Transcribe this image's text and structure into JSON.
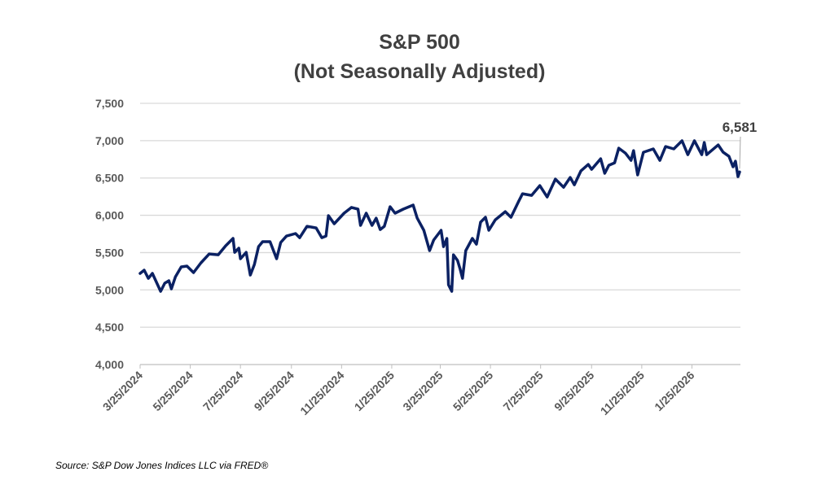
{
  "chart_data": {
    "type": "line",
    "title": "S&P 500",
    "subtitle": "(Not Seasonally Adjusted)",
    "xlabel": "",
    "ylabel": "",
    "ylim": [
      4000,
      7500
    ],
    "yticks": [
      4000,
      4500,
      5000,
      5500,
      6000,
      6500,
      7000,
      7500
    ],
    "ytick_labels": [
      "4,000",
      "4,500",
      "5,000",
      "5,500",
      "6,000",
      "6,500",
      "7,000",
      "7,500"
    ],
    "xlim": [
      "2024-03-25",
      "2026-03-25"
    ],
    "xticks": [
      "2024-03-25",
      "2024-05-25",
      "2024-07-25",
      "2024-09-25",
      "2024-11-25",
      "2025-01-25",
      "2025-03-25",
      "2025-05-25",
      "2025-07-25",
      "2025-09-25",
      "2025-11-25",
      "2026-01-25"
    ],
    "xtick_labels": [
      "3/25/2024",
      "5/25/2024",
      "7/25/2024",
      "9/25/2024",
      "11/25/2024",
      "1/25/2025",
      "3/25/2025",
      "5/25/2025",
      "7/25/2025",
      "9/25/2025",
      "11/25/2025",
      "1/25/2026"
    ],
    "grid": "horizontal",
    "line_color": "#0B2163",
    "annotation": {
      "text": "6,581",
      "value": 6581
    },
    "series": [
      {
        "x": [
          "2024-03-25",
          "2024-03-30",
          "2024-04-04",
          "2024-04-09",
          "2024-04-19",
          "2024-04-24",
          "2024-04-29",
          "2024-05-02",
          "2024-05-07",
          "2024-05-14",
          "2024-05-21",
          "2024-05-29",
          "2024-06-07",
          "2024-06-17",
          "2024-06-28",
          "2024-07-07",
          "2024-07-16",
          "2024-07-18",
          "2024-07-23",
          "2024-07-25",
          "2024-08-01",
          "2024-08-06",
          "2024-08-11",
          "2024-08-16",
          "2024-08-21",
          "2024-08-30",
          "2024-09-07",
          "2024-09-12",
          "2024-09-19",
          "2024-09-30",
          "2024-10-05",
          "2024-10-14",
          "2024-10-25",
          "2024-11-01",
          "2024-11-06",
          "2024-11-09",
          "2024-11-16",
          "2024-11-28",
          "2024-12-07",
          "2024-12-15",
          "2024-12-18",
          "2024-12-25",
          "2025-01-01",
          "2025-01-06",
          "2025-01-11",
          "2025-01-16",
          "2025-01-23",
          "2025-01-29",
          "2025-02-08",
          "2025-02-20",
          "2025-02-25",
          "2025-03-05",
          "2025-03-12",
          "2025-03-17",
          "2025-03-26",
          "2025-03-29",
          "2025-04-02",
          "2025-04-04",
          "2025-04-08",
          "2025-04-10",
          "2025-04-15",
          "2025-04-18",
          "2025-04-21",
          "2025-04-25",
          "2025-05-03",
          "2025-05-08",
          "2025-05-13",
          "2025-05-19",
          "2025-05-23",
          "2025-05-31",
          "2025-06-12",
          "2025-06-19",
          "2025-06-28",
          "2025-07-03",
          "2025-07-14",
          "2025-07-24",
          "2025-08-02",
          "2025-08-12",
          "2025-08-22",
          "2025-08-30",
          "2025-09-04",
          "2025-09-12",
          "2025-09-21",
          "2025-09-25",
          "2025-10-06",
          "2025-10-11",
          "2025-10-16",
          "2025-10-23",
          "2025-10-28",
          "2025-11-05",
          "2025-11-12",
          "2025-11-15",
          "2025-11-20",
          "2025-11-27",
          "2025-12-09",
          "2025-12-17",
          "2025-12-24",
          "2026-01-03",
          "2026-01-13",
          "2026-01-20",
          "2026-01-28",
          "2026-02-06",
          "2026-02-09",
          "2026-02-12",
          "2026-02-26",
          "2026-03-04",
          "2026-03-11",
          "2026-03-16",
          "2026-03-19",
          "2026-03-22",
          "2026-03-24"
        ],
        "y": [
          5221,
          5265,
          5155,
          5221,
          4981,
          5090,
          5123,
          5014,
          5177,
          5308,
          5319,
          5232,
          5363,
          5482,
          5471,
          5591,
          5690,
          5504,
          5559,
          5417,
          5504,
          5199,
          5341,
          5580,
          5646,
          5646,
          5417,
          5635,
          5722,
          5755,
          5700,
          5853,
          5831,
          5700,
          5722,
          5995,
          5886,
          6028,
          6105,
          6083,
          5864,
          6028,
          5864,
          5962,
          5809,
          5853,
          6115,
          6028,
          6083,
          6137,
          5962,
          5799,
          5526,
          5668,
          5799,
          5580,
          5690,
          5068,
          4981,
          5471,
          5395,
          5286,
          5155,
          5526,
          5690,
          5613,
          5908,
          5973,
          5799,
          5940,
          6049,
          5973,
          6180,
          6289,
          6267,
          6398,
          6245,
          6485,
          6376,
          6507,
          6409,
          6594,
          6681,
          6616,
          6758,
          6562,
          6670,
          6703,
          6899,
          6834,
          6736,
          6867,
          6540,
          6845,
          6889,
          6736,
          6921,
          6889,
          6998,
          6812,
          6998,
          6812,
          6976,
          6812,
          6943,
          6845,
          6790,
          6649,
          6725,
          6518,
          6581
        ]
      }
    ],
    "source": "Source: S&P Dow Jones Indices LLC via FRED®"
  }
}
